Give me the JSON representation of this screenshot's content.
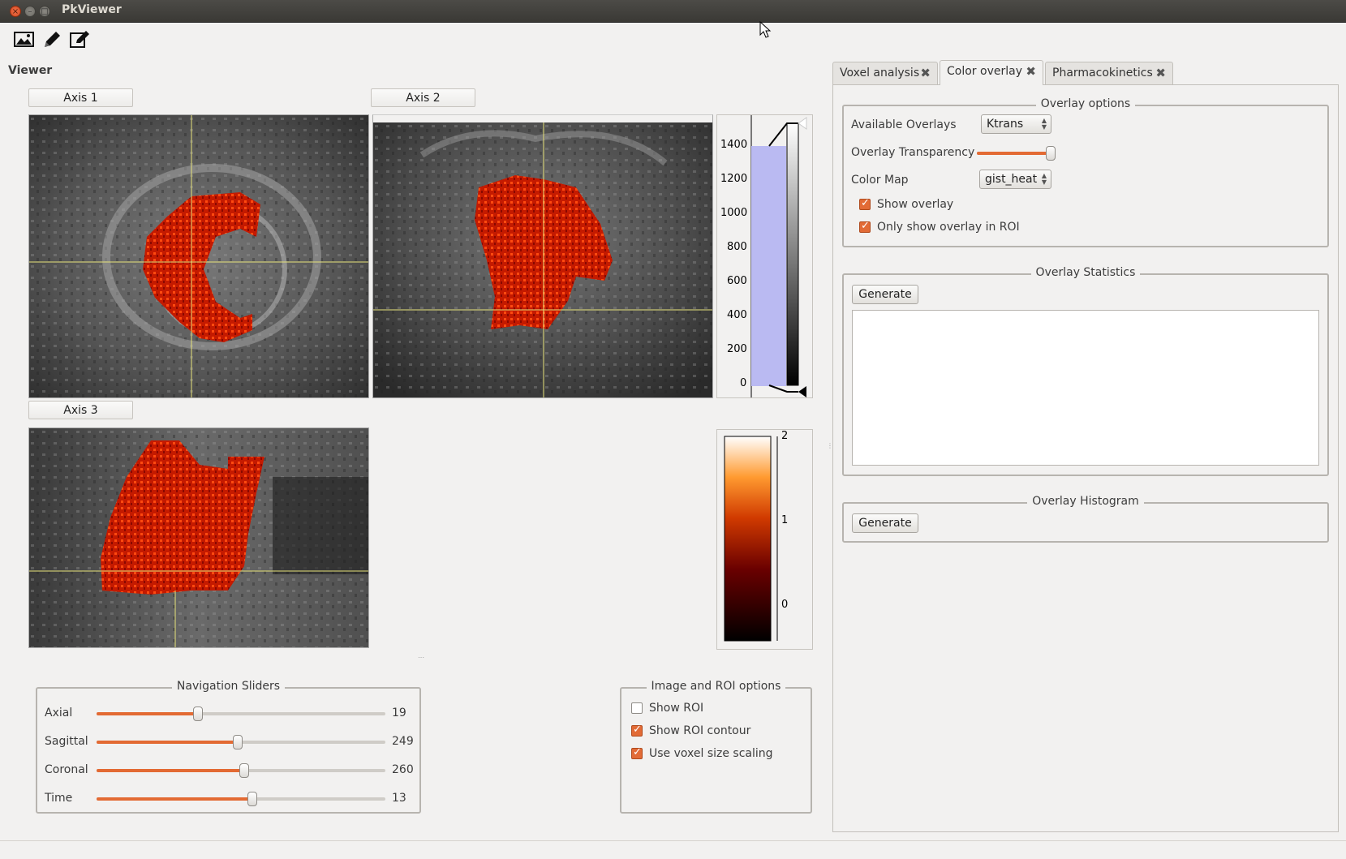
{
  "window": {
    "title": "PkViewer"
  },
  "toolbar": {
    "icons": [
      "image-icon",
      "pencil-icon",
      "edit-icon"
    ]
  },
  "viewer": {
    "label": "Viewer",
    "axis1_label": "Axis 1",
    "axis2_label": "Axis 2",
    "axis3_label": "Axis 3"
  },
  "histogram_widget": {
    "ticks": [
      "1400",
      "1200",
      "1000",
      "800",
      "600",
      "400",
      "200",
      "0"
    ]
  },
  "colorbar": {
    "colormap": "gist_heat",
    "ticks": [
      "2",
      "1",
      "0"
    ]
  },
  "nav": {
    "title": "Navigation Sliders",
    "sliders": [
      {
        "label": "Axial",
        "value": "19",
        "position": 0.35
      },
      {
        "label": "Sagittal",
        "value": "249",
        "position": 0.49
      },
      {
        "label": "Coronal",
        "value": "260",
        "position": 0.51
      },
      {
        "label": "Time",
        "value": "13",
        "position": 0.54
      }
    ]
  },
  "image_roi": {
    "title": "Image and ROI options",
    "options": [
      {
        "label": "Show ROI",
        "checked": false
      },
      {
        "label": "Show ROI contour",
        "checked": true
      },
      {
        "label": "Use voxel size scaling",
        "checked": true
      }
    ]
  },
  "tabs": [
    {
      "label": "Voxel analysis",
      "active": false
    },
    {
      "label": "Color overlay",
      "active": true
    },
    {
      "label": "Pharmacokinetics",
      "active": false
    }
  ],
  "overlay_options": {
    "title": "Overlay options",
    "available_label": "Available Overlays",
    "available_value": "Ktrans",
    "transparency_label": "Overlay Transparency",
    "transparency_value": 1.0,
    "colormap_label": "Color Map",
    "colormap_value": "gist_heat",
    "show_overlay_label": "Show overlay",
    "show_overlay": true,
    "only_roi_label": "Only show overlay in ROI",
    "only_roi": true
  },
  "overlay_stats": {
    "title": "Overlay Statistics",
    "button": "Generate"
  },
  "overlay_hist": {
    "title": "Overlay Histogram",
    "button": "Generate"
  },
  "colors": {
    "accent": "#e36a33",
    "overlay_red": "#c01a00"
  }
}
